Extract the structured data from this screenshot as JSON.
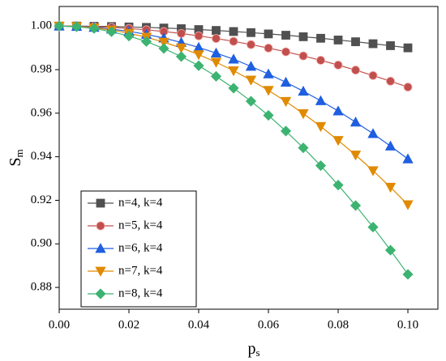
{
  "chart_data": {
    "type": "line",
    "xlabel": {
      "main": "p",
      "sub": "s"
    },
    "ylabel": {
      "main": "S",
      "sub": "m"
    },
    "x": [
      0,
      0.005,
      0.01,
      0.015,
      0.02,
      0.025,
      0.03,
      0.035,
      0.04,
      0.045,
      0.05,
      0.055,
      0.06,
      0.065,
      0.07,
      0.075,
      0.08,
      0.085,
      0.09,
      0.095,
      0.1
    ],
    "series": [
      {
        "name": "n=4, k=4",
        "color": "#505050",
        "marker": "square",
        "values": [
          1,
          1.0,
          0.9999,
          0.9998,
          0.9996,
          0.9994,
          0.9991,
          0.9988,
          0.9984,
          0.998,
          0.9975,
          0.997,
          0.9964,
          0.9958,
          0.9951,
          0.9944,
          0.9936,
          0.9928,
          0.9919,
          0.991,
          0.99
        ]
      },
      {
        "name": "n=5, k=4",
        "color": "#c0504d",
        "marker": "circle",
        "values": [
          1,
          0.9999,
          0.9997,
          0.9994,
          0.9989,
          0.9983,
          0.9975,
          0.9966,
          0.9955,
          0.9943,
          0.993,
          0.9915,
          0.9899,
          0.9882,
          0.9863,
          0.9843,
          0.9821,
          0.9798,
          0.9773,
          0.9747,
          0.972
        ]
      },
      {
        "name": "n=6, k=4",
        "color": "#1f5fe0",
        "marker": "triangle-up",
        "values": [
          1,
          0.9998,
          0.9994,
          0.9986,
          0.9976,
          0.9962,
          0.9945,
          0.9925,
          0.9902,
          0.9876,
          0.9848,
          0.9815,
          0.978,
          0.9742,
          0.9701,
          0.9657,
          0.961,
          0.9559,
          0.9506,
          0.9449,
          0.939
        ]
      },
      {
        "name": "n=7, k=4",
        "color": "#e08a00",
        "marker": "triangle-down",
        "values": [
          1,
          0.9998,
          0.9992,
          0.9982,
          0.9967,
          0.9949,
          0.9926,
          0.99,
          0.9869,
          0.9834,
          0.9795,
          0.9752,
          0.9705,
          0.9654,
          0.9598,
          0.9539,
          0.9475,
          0.9408,
          0.9336,
          0.926,
          0.918
        ]
      },
      {
        "name": "n=8, k=4",
        "color": "#3cb371",
        "marker": "diamond",
        "values": [
          1,
          0.9997,
          0.9989,
          0.9974,
          0.9954,
          0.9929,
          0.9897,
          0.986,
          0.9818,
          0.9769,
          0.9715,
          0.9655,
          0.959,
          0.9518,
          0.9441,
          0.9359,
          0.927,
          0.9176,
          0.9077,
          0.8971,
          0.886
        ]
      }
    ],
    "xlim": [
      0,
      0.1086
    ],
    "ylim": [
      0.87,
      1.009
    ],
    "xticks": [
      {
        "value": 0,
        "label": "0.00"
      },
      {
        "value": 0.02,
        "label": "0.02"
      },
      {
        "value": 0.04,
        "label": "0.04"
      },
      {
        "value": 0.06,
        "label": "0.06"
      },
      {
        "value": 0.08,
        "label": "0.08"
      },
      {
        "value": 0.1,
        "label": "0.10"
      }
    ],
    "yticks": [
      {
        "value": 0.88,
        "label": "0.88"
      },
      {
        "value": 0.9,
        "label": "0.90"
      },
      {
        "value": 0.92,
        "label": "0.92"
      },
      {
        "value": 0.94,
        "label": "0.94"
      },
      {
        "value": 0.96,
        "label": "0.96"
      },
      {
        "value": 0.98,
        "label": "0.98"
      },
      {
        "value": 1,
        "label": "1.00"
      }
    ],
    "grid": false,
    "legend": "lower left"
  }
}
